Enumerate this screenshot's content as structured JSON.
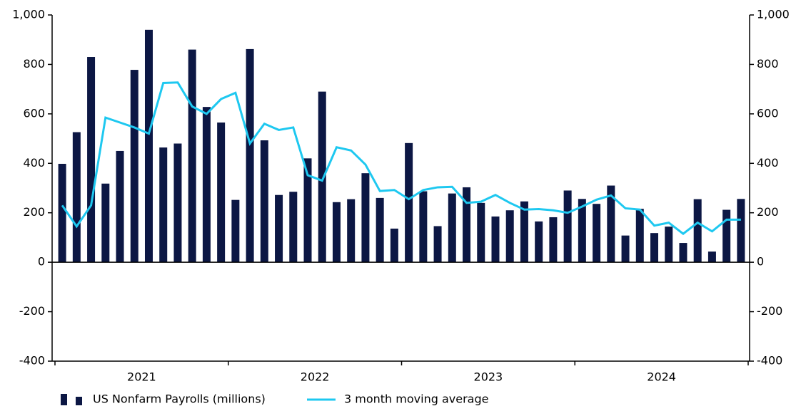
{
  "chart_data": {
    "type": "bar",
    "categories": [
      null,
      null,
      null,
      null,
      null,
      null,
      null,
      null,
      null,
      null,
      null,
      null,
      null,
      null,
      null,
      null,
      null,
      null,
      null,
      null,
      null,
      null,
      null,
      null,
      null,
      null,
      null,
      null,
      null,
      null,
      null,
      null,
      null,
      null,
      null,
      null,
      null,
      null,
      null,
      null,
      null,
      null,
      null,
      null,
      null,
      null,
      null,
      null
    ],
    "year_labels": [
      "2021",
      "2022",
      "2023",
      "2024"
    ],
    "series": [
      {
        "name": "US Nonfarm Payrolls (millions)",
        "type": "bar",
        "color": "#0c1744",
        "values": [
          398,
          526,
          830,
          318,
          450,
          778,
          940,
          464,
          480,
          860,
          628,
          565,
          252,
          862,
          493,
          272,
          285,
          420,
          690,
          243,
          255,
          360,
          260,
          136,
          482,
          287,
          146,
          278,
          303,
          240,
          185,
          210,
          246,
          165,
          182,
          290,
          256,
          236,
          310,
          108,
          216,
          118,
          144,
          78,
          255,
          43,
          212,
          256
        ]
      },
      {
        "name": "3 month moving average",
        "type": "line",
        "axis": "y2",
        "color": "#1ec8f0",
        "values": [
          230,
          145,
          230,
          585,
          565,
          545,
          520,
          725,
          727,
          630,
          600,
          660,
          685,
          480,
          560,
          535,
          545,
          352,
          330,
          465,
          452,
          395,
          288,
          292,
          255,
          292,
          303,
          305,
          240,
          245,
          272,
          240,
          213,
          215,
          210,
          200,
          225,
          253,
          270,
          218,
          213,
          148,
          160,
          115,
          160,
          125,
          172,
          172
        ]
      }
    ],
    "ylim": [
      -400,
      1000
    ],
    "yticks": [
      -400,
      -200,
      0,
      200,
      400,
      600,
      800,
      {
        "value": 1000,
        "label": "1,000"
      }
    ],
    "y2lim": [
      -400,
      1000
    ],
    "y2ticks": [
      -400,
      -200,
      0,
      200,
      400,
      600,
      800,
      {
        "value": 1000,
        "label": "1,000"
      }
    ]
  }
}
